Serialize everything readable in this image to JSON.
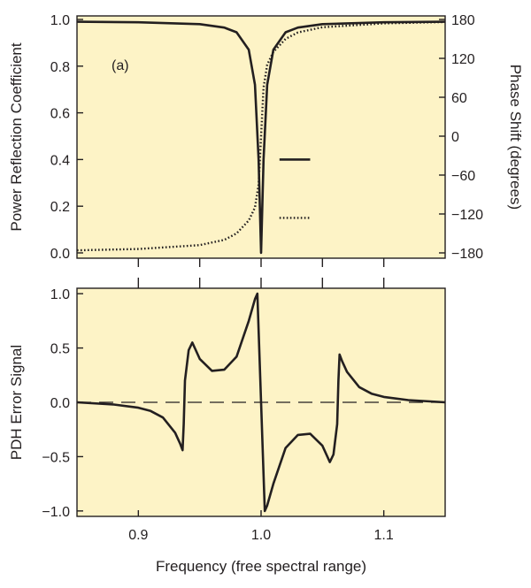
{
  "chart_data": [
    {
      "type": "line",
      "panel_label": "(a)",
      "xlim": [
        0.85,
        1.15
      ],
      "ylim": [
        0,
        1
      ],
      "y2lim": [
        -180,
        180
      ],
      "ylabel": "Power Reflection Coefficient",
      "y2label": "Phase Shift (degrees)",
      "y_ticks": [
        "0.0",
        "0.2",
        "0.4",
        "0.6",
        "0.8",
        "1.0"
      ],
      "y_tick_values": [
        0,
        0.2,
        0.4,
        0.6,
        0.8,
        1.0
      ],
      "y2_ticks": [
        "-180",
        "-120",
        "-60",
        "0",
        "60",
        "120",
        "180"
      ],
      "y2_tick_values": [
        -180,
        -120,
        -60,
        0,
        60,
        120,
        180
      ],
      "x_tick_values": [
        0.9,
        0.95,
        1.0,
        1.05,
        1.1
      ],
      "grid": false,
      "background": "#fdf3c6",
      "series": [
        {
          "style": "solid",
          "axis": "left",
          "x": [
            0.85,
            0.9,
            0.95,
            0.97,
            0.98,
            0.99,
            0.995,
            0.998,
            1.0,
            1.002,
            1.005,
            1.01,
            1.02,
            1.03,
            1.05,
            1.1,
            1.15
          ],
          "y": [
            0.99,
            0.988,
            0.98,
            0.965,
            0.945,
            0.87,
            0.72,
            0.4,
            0.0,
            0.4,
            0.72,
            0.87,
            0.945,
            0.965,
            0.98,
            0.988,
            0.99
          ]
        },
        {
          "style": "dotted",
          "axis": "right",
          "x": [
            0.85,
            0.9,
            0.95,
            0.97,
            0.98,
            0.99,
            0.995,
            0.998,
            1.0,
            1.002,
            1.005,
            1.01,
            1.02,
            1.03,
            1.05,
            1.1,
            1.15
          ],
          "y": [
            -176,
            -174,
            -168,
            -160,
            -150,
            -130,
            -110,
            -75,
            0,
            75,
            110,
            130,
            150,
            160,
            168,
            174,
            176
          ]
        }
      ],
      "legend": [
        {
          "style": "solid",
          "y": 0.4,
          "x": [
            1.015,
            1.04
          ]
        },
        {
          "style": "dotted",
          "y": 0.15,
          "x": [
            1.015,
            1.04
          ]
        }
      ]
    },
    {
      "type": "line",
      "xlim": [
        0.85,
        1.15
      ],
      "ylim": [
        -1.05,
        1.05
      ],
      "ylabel": "PDH Error Signal",
      "xlabel": "Frequency (free spectral range)",
      "x_ticks": [
        "0.9",
        "1.0",
        "1.1"
      ],
      "x_tick_values": [
        0.9,
        1.0,
        1.1
      ],
      "y_ticks": [
        "-1.0",
        "-0.5",
        "0.0",
        "0.5",
        "1.0"
      ],
      "y_tick_values": [
        -1.0,
        -0.5,
        0.0,
        0.5,
        1.0
      ],
      "grid": false,
      "background": "#fdf3c6",
      "reference_line": {
        "y": 0,
        "style": "dashed"
      },
      "series": [
        {
          "style": "solid",
          "x": [
            0.85,
            0.88,
            0.9,
            0.91,
            0.92,
            0.93,
            0.934,
            0.936,
            0.937,
            0.938,
            0.941,
            0.944,
            0.95,
            0.96,
            0.97,
            0.98,
            0.99,
            0.995,
            0.997,
            1.0,
            1.003,
            1.005,
            1.01,
            1.02,
            1.03,
            1.04,
            1.05,
            1.056,
            1.059,
            1.062,
            1.063,
            1.064,
            1.066,
            1.07,
            1.08,
            1.09,
            1.1,
            1.12,
            1.15
          ],
          "y": [
            0.0,
            -0.02,
            -0.05,
            -0.08,
            -0.14,
            -0.28,
            -0.38,
            -0.44,
            -0.2,
            0.2,
            0.48,
            0.55,
            0.4,
            0.29,
            0.3,
            0.42,
            0.75,
            0.95,
            1.0,
            0.0,
            -1.0,
            -0.95,
            -0.75,
            -0.42,
            -0.3,
            -0.29,
            -0.4,
            -0.55,
            -0.48,
            -0.2,
            0.2,
            0.44,
            0.38,
            0.28,
            0.14,
            0.08,
            0.05,
            0.02,
            0.0
          ]
        }
      ]
    }
  ]
}
